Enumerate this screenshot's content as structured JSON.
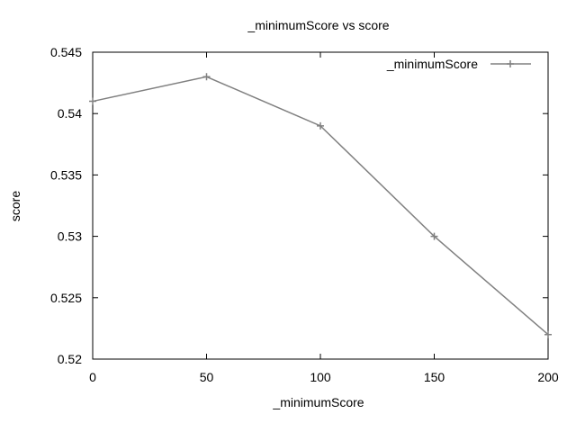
{
  "chart_data": {
    "type": "line",
    "title": "_minimumScore vs score",
    "xlabel": "_minimumScore",
    "ylabel": "score",
    "xlim": [
      0,
      200
    ],
    "ylim": [
      0.52,
      0.545
    ],
    "xticks": [
      0,
      50,
      100,
      150,
      200
    ],
    "xtick_labels": [
      "0",
      "50",
      "100",
      "150",
      "200"
    ],
    "yticks": [
      0.52,
      0.525,
      0.53,
      0.535,
      0.54,
      0.545
    ],
    "ytick_labels": [
      "0.52",
      "0.525",
      "0.53",
      "0.535",
      "0.54",
      "0.545"
    ],
    "grid": false,
    "legend_position": "top-right",
    "series": [
      {
        "name": "_minimumScore",
        "color": "#808080",
        "marker": "plus",
        "x": [
          0,
          50,
          100,
          150,
          200
        ],
        "y": [
          0.541,
          0.543,
          0.539,
          0.53,
          0.522
        ]
      }
    ]
  }
}
